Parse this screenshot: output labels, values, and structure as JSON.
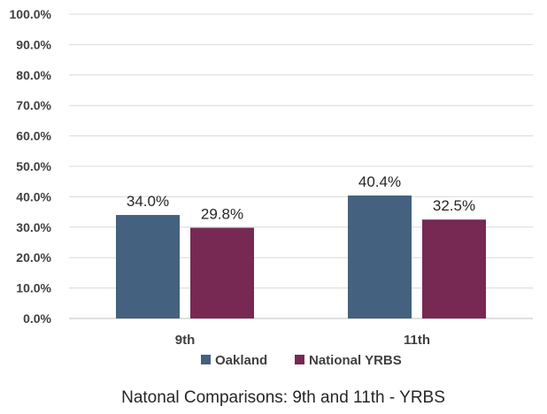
{
  "chart_data": {
    "type": "bar",
    "title": "Natonal Comparisons: 9th and 11th - YRBS",
    "xlabel": "",
    "ylabel": "",
    "categories": [
      "9th",
      "11th"
    ],
    "series": [
      {
        "name": "Oakland",
        "values": [
          34.0,
          40.4
        ],
        "color": "#44617f",
        "labels": [
          "34.0%",
          "40.4%"
        ]
      },
      {
        "name": "National YRBS",
        "values": [
          29.8,
          32.5
        ],
        "color": "#772953",
        "labels": [
          "29.8%",
          "32.5%"
        ]
      }
    ],
    "ylim": [
      0,
      100
    ],
    "yticks": [
      "0.0%",
      "10.0%",
      "20.0%",
      "30.0%",
      "40.0%",
      "50.0%",
      "60.0%",
      "70.0%",
      "80.0%",
      "90.0%",
      "100.0%"
    ],
    "grid": true,
    "legend_position": "bottom"
  }
}
